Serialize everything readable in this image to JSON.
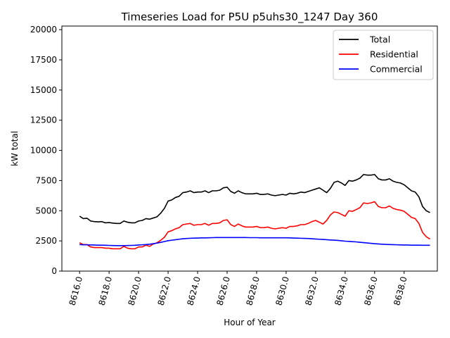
{
  "chart_data": {
    "type": "line",
    "title": "Timeseries Load for P5U p5uhs30_1247  Day 360",
    "xlabel": "Hour of Year",
    "ylabel": "kW total",
    "xlim": [
      8614.8,
      8640.25
    ],
    "ylim": [
      0,
      20300
    ],
    "xticks": [
      8616,
      8618,
      8620,
      8622,
      8624,
      8626,
      8628,
      8630,
      8632,
      8634,
      8636,
      8638
    ],
    "xtick_labels": [
      "8616.0",
      "8618.0",
      "8620.0",
      "8622.0",
      "8624.0",
      "8626.0",
      "8628.0",
      "8630.0",
      "8632.0",
      "8634.0",
      "8636.0",
      "8638.0"
    ],
    "yticks": [
      0,
      2500,
      5000,
      7500,
      10000,
      12500,
      15000,
      17500,
      20000
    ],
    "ytick_labels": [
      "0",
      "2500",
      "5000",
      "7500",
      "10000",
      "12500",
      "15000",
      "17500",
      "20000"
    ],
    "legend_position": "top-right",
    "x": [
      8616.0,
      8616.25,
      8616.5,
      8616.75,
      8617.0,
      8617.25,
      8617.5,
      8617.75,
      8618.0,
      8618.25,
      8618.5,
      8618.75,
      8619.0,
      8619.25,
      8619.5,
      8619.75,
      8620.0,
      8620.25,
      8620.5,
      8620.75,
      8621.0,
      8621.25,
      8621.5,
      8621.75,
      8622.0,
      8622.25,
      8622.5,
      8622.75,
      8623.0,
      8623.25,
      8623.5,
      8623.75,
      8624.0,
      8624.25,
      8624.5,
      8624.75,
      8625.0,
      8625.25,
      8625.5,
      8625.75,
      8626.0,
      8626.25,
      8626.5,
      8626.75,
      8627.0,
      8627.25,
      8627.5,
      8627.75,
      8628.0,
      8628.25,
      8628.5,
      8628.75,
      8629.0,
      8629.25,
      8629.5,
      8629.75,
      8630.0,
      8630.25,
      8630.5,
      8630.75,
      8631.0,
      8631.25,
      8631.5,
      8631.75,
      8632.0,
      8632.25,
      8632.5,
      8632.75,
      8633.0,
      8633.25,
      8633.5,
      8633.75,
      8634.0,
      8634.25,
      8634.5,
      8634.75,
      8635.0,
      8635.25,
      8635.5,
      8635.75,
      8636.0,
      8636.25,
      8636.5,
      8636.75,
      8637.0,
      8637.25,
      8637.5,
      8637.75,
      8638.0,
      8638.25,
      8638.5,
      8638.75,
      8639.0,
      8639.25,
      8639.5,
      8639.75
    ],
    "series": [
      {
        "name": "Total",
        "color": "#000000",
        "values": [
          4550,
          4350,
          4380,
          4150,
          4100,
          4080,
          4100,
          4000,
          4020,
          3980,
          3950,
          3950,
          4150,
          4050,
          4000,
          4000,
          4150,
          4200,
          4350,
          4300,
          4400,
          4500,
          4800,
          5200,
          5800,
          5900,
          6100,
          6200,
          6500,
          6550,
          6650,
          6500,
          6550,
          6550,
          6650,
          6500,
          6650,
          6650,
          6700,
          6900,
          6950,
          6600,
          6450,
          6650,
          6500,
          6400,
          6400,
          6400,
          6450,
          6350,
          6350,
          6400,
          6300,
          6250,
          6300,
          6350,
          6300,
          6450,
          6400,
          6450,
          6550,
          6500,
          6600,
          6700,
          6800,
          6900,
          6700,
          6500,
          6850,
          7350,
          7450,
          7300,
          7100,
          7500,
          7450,
          7550,
          7700,
          8000,
          7950,
          7950,
          8000,
          7650,
          7550,
          7550,
          7650,
          7450,
          7350,
          7300,
          7150,
          6900,
          6650,
          6550,
          6150,
          5350,
          5000,
          4850
        ]
      },
      {
        "name": "Residential",
        "color": "#ff0000",
        "values": [
          2350,
          2200,
          2200,
          2000,
          1950,
          1950,
          1950,
          1900,
          1900,
          1850,
          1850,
          1850,
          2050,
          1900,
          1850,
          1850,
          2000,
          2000,
          2150,
          2050,
          2250,
          2350,
          2550,
          2800,
          3250,
          3350,
          3500,
          3600,
          3850,
          3900,
          3950,
          3800,
          3850,
          3850,
          3950,
          3800,
          3950,
          3950,
          4000,
          4200,
          4250,
          3850,
          3700,
          3900,
          3750,
          3650,
          3650,
          3650,
          3700,
          3600,
          3600,
          3650,
          3550,
          3500,
          3550,
          3600,
          3550,
          3700,
          3700,
          3750,
          3850,
          3850,
          3950,
          4100,
          4200,
          4050,
          3900,
          4200,
          4650,
          4900,
          4850,
          4700,
          4550,
          5000,
          4950,
          5100,
          5250,
          5650,
          5600,
          5650,
          5750,
          5350,
          5250,
          5250,
          5400,
          5200,
          5100,
          5050,
          4950,
          4700,
          4450,
          4350,
          3950,
          3200,
          2850,
          2650
        ]
      },
      {
        "name": "Commercial",
        "color": "#0000ff",
        "values": [
          2200,
          2180,
          2180,
          2170,
          2160,
          2150,
          2150,
          2140,
          2130,
          2120,
          2110,
          2110,
          2110,
          2120,
          2130,
          2140,
          2160,
          2180,
          2200,
          2230,
          2270,
          2320,
          2380,
          2450,
          2520,
          2560,
          2600,
          2640,
          2680,
          2700,
          2720,
          2730,
          2740,
          2750,
          2750,
          2760,
          2770,
          2780,
          2780,
          2780,
          2780,
          2780,
          2780,
          2780,
          2780,
          2780,
          2770,
          2770,
          2770,
          2760,
          2760,
          2760,
          2760,
          2760,
          2760,
          2760,
          2760,
          2750,
          2740,
          2730,
          2720,
          2710,
          2700,
          2680,
          2660,
          2640,
          2620,
          2600,
          2580,
          2560,
          2540,
          2510,
          2480,
          2460,
          2440,
          2420,
          2390,
          2360,
          2330,
          2300,
          2270,
          2250,
          2230,
          2210,
          2200,
          2190,
          2180,
          2170,
          2160,
          2160,
          2150,
          2150,
          2150,
          2140,
          2140,
          2140
        ]
      }
    ]
  }
}
